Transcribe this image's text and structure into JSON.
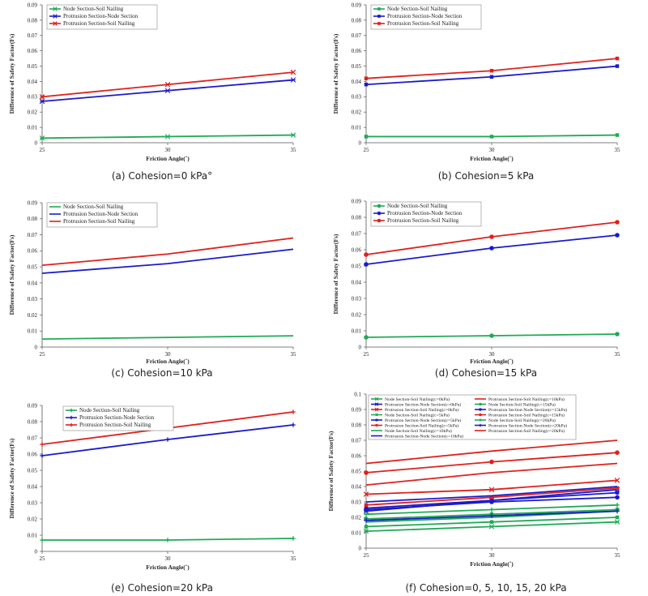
{
  "colors": {
    "green": "#1faa55",
    "blue": "#1a1acc",
    "red": "#e0201c"
  },
  "chart_data": [
    {
      "type": "line",
      "caption": "(a) Cohesion=0 kPa°",
      "xlabel": "Friction Angle(˚)",
      "ylabel": "Difference of Safety Factor(Fs)",
      "x": [
        25,
        30,
        35
      ],
      "xticks": [
        25,
        30,
        35
      ],
      "ylim": [
        0,
        0.09
      ],
      "yticks": [
        0,
        0.01,
        0.02,
        0.03,
        0.04,
        0.05,
        0.06,
        0.07,
        0.08,
        0.09
      ],
      "legend_position": "top-left",
      "series": [
        {
          "name": "Node Section-Soil Nailing",
          "values": [
            0.003,
            0.004,
            0.005
          ],
          "color": "#1faa55",
          "marker": "star"
        },
        {
          "name": "Protrusion Section-Node Section",
          "values": [
            0.027,
            0.034,
            0.041
          ],
          "color": "#1a1acc",
          "marker": "star"
        },
        {
          "name": "Protrusion Section-Soil Nailing",
          "values": [
            0.03,
            0.038,
            0.046
          ],
          "color": "#e0201c",
          "marker": "x"
        }
      ]
    },
    {
      "type": "line",
      "caption": "(b) Cohesion=5 kPa",
      "xlabel": "Friction Angle(˚)",
      "ylabel": "Difference of Safety Factor(Fs)",
      "x": [
        25,
        30,
        35
      ],
      "xticks": [
        25,
        30,
        35
      ],
      "ylim": [
        0,
        0.09
      ],
      "yticks": [
        0,
        0.01,
        0.02,
        0.03,
        0.04,
        0.05,
        0.06,
        0.07,
        0.08,
        0.09
      ],
      "legend_position": "top-left",
      "series": [
        {
          "name": "Node Section-Soil Nailing",
          "values": [
            0.004,
            0.004,
            0.005
          ],
          "color": "#1faa55",
          "marker": "square"
        },
        {
          "name": "Protrusion Section-Node Section",
          "values": [
            0.038,
            0.043,
            0.05
          ],
          "color": "#1a1acc",
          "marker": "square"
        },
        {
          "name": "Protrusion Section-Soil Nailing",
          "values": [
            0.042,
            0.047,
            0.055
          ],
          "color": "#e0201c",
          "marker": "square"
        }
      ]
    },
    {
      "type": "line",
      "caption": "(c) Cohesion=10 kPa",
      "xlabel": "Friction Angle(˚)",
      "ylabel": "Difference of Safety Factor(Fs)",
      "x": [
        25,
        30,
        35
      ],
      "xticks": [
        25,
        30,
        35
      ],
      "ylim": [
        0,
        0.09
      ],
      "yticks": [
        0,
        0.01,
        0.02,
        0.03,
        0.04,
        0.05,
        0.06,
        0.07,
        0.08,
        0.09
      ],
      "legend_position": "top-left",
      "series": [
        {
          "name": "Node Section-Soil Nailing",
          "values": [
            0.005,
            0.006,
            0.007
          ],
          "color": "#1faa55",
          "marker": "none"
        },
        {
          "name": "Protrusion Section-Node Section",
          "values": [
            0.046,
            0.052,
            0.061
          ],
          "color": "#1a1acc",
          "marker": "none"
        },
        {
          "name": "Protrusion Section-Soil Nailing",
          "values": [
            0.051,
            0.058,
            0.068
          ],
          "color": "#e0201c",
          "marker": "none"
        }
      ]
    },
    {
      "type": "line",
      "caption": "(d) Cohesion=15 kPa",
      "xlabel": "Friction Angle(˚)",
      "ylabel": "Difference of Safety Factor(Fs)",
      "x": [
        25,
        30,
        35
      ],
      "xticks": [
        25,
        30,
        35
      ],
      "ylim": [
        0,
        0.09
      ],
      "yticks": [
        0,
        0.01,
        0.02,
        0.03,
        0.04,
        0.05,
        0.06,
        0.07,
        0.08,
        0.09
      ],
      "legend_position": "top-left",
      "series": [
        {
          "name": "Node Section-Soil Nailing",
          "values": [
            0.006,
            0.007,
            0.008
          ],
          "color": "#1faa55",
          "marker": "circle"
        },
        {
          "name": "Protrusion Section-Node Section",
          "values": [
            0.051,
            0.061,
            0.069
          ],
          "color": "#1a1acc",
          "marker": "circle"
        },
        {
          "name": "Protrusion Section-Soil Nailing",
          "values": [
            0.057,
            0.068,
            0.077
          ],
          "color": "#e0201c",
          "marker": "circle"
        }
      ]
    },
    {
      "type": "line",
      "caption": "(e) Cohesion=20 kPa",
      "xlabel": "Friction Angle(˚)",
      "ylabel": "Difference of Safety Factor(Fs)",
      "x": [
        25,
        30,
        35
      ],
      "xticks": [
        25,
        30,
        35
      ],
      "ylim": [
        0,
        0.09
      ],
      "yticks": [
        0,
        0.01,
        0.02,
        0.03,
        0.04,
        0.05,
        0.06,
        0.07,
        0.08,
        0.09
      ],
      "legend_position": "top-right",
      "series": [
        {
          "name": "Node Section-Soil Nailing",
          "values": [
            0.007,
            0.007,
            0.008
          ],
          "color": "#1faa55",
          "marker": "plus"
        },
        {
          "name": "Protrusion Section-Node Section",
          "values": [
            0.059,
            0.069,
            0.078
          ],
          "color": "#1a1acc",
          "marker": "plus"
        },
        {
          "name": "Protrusion Section-Soil Nailing",
          "values": [
            0.066,
            0.076,
            0.086
          ],
          "color": "#e0201c",
          "marker": "plus"
        }
      ]
    },
    {
      "type": "line",
      "caption": "(f) Cohesion=0, 5, 10, 15, 20 kPa",
      "xlabel": "Friction Angle(˚)",
      "ylabel": "Difference of Safety Factor(Fs)",
      "x": [
        25,
        30,
        35
      ],
      "xticks": [
        25,
        30,
        35
      ],
      "ylim": [
        0,
        0.1
      ],
      "yticks": [
        0,
        0.01,
        0.02,
        0.03,
        0.04,
        0.05,
        0.06,
        0.07,
        0.08,
        0.09,
        0.1
      ],
      "legend_position": "top",
      "legend_columns": 2,
      "series": [
        {
          "name": "Node Section-Soil Nailing(c=0kPa)",
          "values": [
            0.011,
            0.014,
            0.017
          ],
          "color": "#1faa55",
          "marker": "star"
        },
        {
          "name": "Protrusion Section-Node Section(c=0kPa)",
          "values": [
            0.024,
            0.031,
            0.038
          ],
          "color": "#1a1acc",
          "marker": "star"
        },
        {
          "name": "Protrusion Section-Soil Nailing(c=0kPa)",
          "values": [
            0.035,
            0.038,
            0.044
          ],
          "color": "#e0201c",
          "marker": "x"
        },
        {
          "name": "Node Section-Soil Nailing(c=5kPa)",
          "values": [
            0.014,
            0.017,
            0.02
          ],
          "color": "#1faa55",
          "marker": "square"
        },
        {
          "name": "Protrusion Section-Node Section(c=5kPa)",
          "values": [
            0.026,
            0.031,
            0.036
          ],
          "color": "#1a1acc",
          "marker": "square"
        },
        {
          "name": "Protrusion Section-Soil Nailing(c=5kPa)",
          "values": [
            0.028,
            0.033,
            0.039
          ],
          "color": "#e0201c",
          "marker": "square"
        },
        {
          "name": "Node Section-Soil Nailing(c=10kPa)",
          "values": [
            0.017,
            0.02,
            0.024
          ],
          "color": "#1faa55",
          "marker": "none"
        },
        {
          "name": "Protrusion Section-Node Section(c=10kPa)",
          "values": [
            0.03,
            0.034,
            0.04
          ],
          "color": "#1a1acc",
          "marker": "none"
        },
        {
          "name": "Protrusion Section-Soil Nailing(c=10kPa)",
          "values": [
            0.041,
            0.049,
            0.055
          ],
          "color": "#e0201c",
          "marker": "none"
        },
        {
          "name": "Node Section-Soil Nailing(c=15kPa)",
          "values": [
            0.019,
            0.022,
            0.025
          ],
          "color": "#1faa55",
          "marker": "circle"
        },
        {
          "name": "Protrusion Section-Node Section(c=15kPa)",
          "values": [
            0.025,
            0.03,
            0.033
          ],
          "color": "#1a1acc",
          "marker": "circle"
        },
        {
          "name": "Protrusion Section-Soil Nailing(c=15kPa)",
          "values": [
            0.049,
            0.056,
            0.062
          ],
          "color": "#e0201c",
          "marker": "circle"
        },
        {
          "name": "Node Section-Soil Nailing(c=20kPa)",
          "values": [
            0.022,
            0.025,
            0.028
          ],
          "color": "#1faa55",
          "marker": "plus"
        },
        {
          "name": "Protrusion Section-Node Section(c=20kPa)",
          "values": [
            0.018,
            0.021,
            0.024
          ],
          "color": "#1a1acc",
          "marker": "plus"
        },
        {
          "name": "Protrusion Section-Soil Nailing(c=20kPa)",
          "values": [
            0.055,
            0.063,
            0.07
          ],
          "color": "#e0201c",
          "marker": "none"
        }
      ]
    }
  ]
}
